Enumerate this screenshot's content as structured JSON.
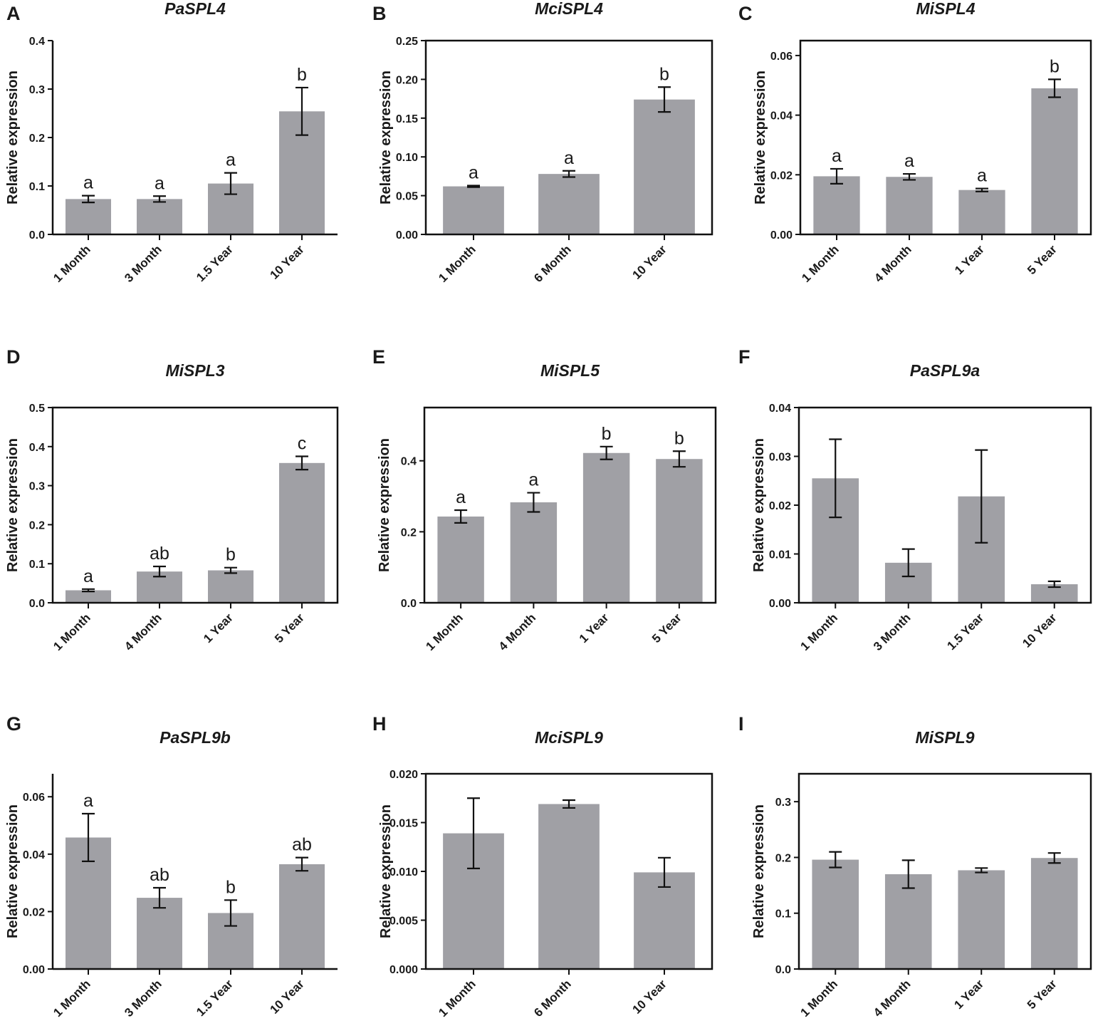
{
  "chart_data": [
    {
      "panel": "A",
      "title": "PaSPL4",
      "type": "bar",
      "ylabel": "Relative expression",
      "ylim": [
        0,
        0.4
      ],
      "yticks": [
        "0.0",
        "0.1",
        "0.2",
        "0.3",
        "0.4"
      ],
      "categories": [
        "1 Month",
        "3 Month",
        "1.5 Year",
        "10 Year"
      ],
      "values": [
        0.073,
        0.073,
        0.105,
        0.254
      ],
      "errors": [
        0.007,
        0.006,
        0.022,
        0.049
      ],
      "labels": [
        "a",
        "a",
        "a",
        "b"
      ],
      "boxed": false
    },
    {
      "panel": "B",
      "title": "MciSPL4",
      "type": "bar",
      "ylabel": "Relative expression",
      "ylim": [
        0,
        0.25
      ],
      "yticks": [
        "0.00",
        "0.05",
        "0.10",
        "0.15",
        "0.20",
        "0.25"
      ],
      "categories": [
        "1 Month",
        "6 Month",
        "10 Year"
      ],
      "values": [
        0.062,
        0.078,
        0.174
      ],
      "errors": [
        0.001,
        0.004,
        0.016
      ],
      "labels": [
        "a",
        "a",
        "b"
      ],
      "boxed": true
    },
    {
      "panel": "C",
      "title": "MiSPL4",
      "type": "bar",
      "ylabel": "Relative expression",
      "ylim": [
        0,
        0.065
      ],
      "yticks": [
        "0.00",
        "0.02",
        "0.04",
        "0.06"
      ],
      "ytick_values": [
        0,
        0.02,
        0.04,
        0.06
      ],
      "categories": [
        "1 Month",
        "4 Month",
        "1 Year",
        "5 Year"
      ],
      "values": [
        0.0195,
        0.0193,
        0.0149,
        0.049
      ],
      "errors": [
        0.0025,
        0.001,
        0.0005,
        0.003
      ],
      "labels": [
        "a",
        "a",
        "a",
        "b"
      ],
      "boxed": true
    },
    {
      "panel": "D",
      "title": "MiSPL3",
      "type": "bar",
      "ylabel": "Relative expression",
      "ylim": [
        0,
        0.5
      ],
      "yticks": [
        "0.0",
        "0.1",
        "0.2",
        "0.3",
        "0.4",
        "0.5"
      ],
      "categories": [
        "1 Month",
        "4 Month",
        "1 Year",
        "5 Year"
      ],
      "values": [
        0.032,
        0.08,
        0.083,
        0.358
      ],
      "errors": [
        0.003,
        0.013,
        0.007,
        0.017
      ],
      "labels": [
        "a",
        "ab",
        "b",
        "c"
      ],
      "boxed": true
    },
    {
      "panel": "E",
      "title": "MiSPL5",
      "type": "bar",
      "ylabel": "Relative expression",
      "ylim": [
        0,
        0.55
      ],
      "yticks": [
        "0.0",
        "0.2",
        "0.4"
      ],
      "ytick_values": [
        0,
        0.2,
        0.4
      ],
      "categories": [
        "1 Month",
        "4 Month",
        "1 Year",
        "5 Year"
      ],
      "values": [
        0.243,
        0.283,
        0.422,
        0.405
      ],
      "errors": [
        0.018,
        0.027,
        0.018,
        0.022
      ],
      "labels": [
        "a",
        "a",
        "b",
        "b"
      ],
      "boxed": true
    },
    {
      "panel": "F",
      "title": "PaSPL9a",
      "type": "bar",
      "ylabel": "Relative expression",
      "ylim": [
        0,
        0.04
      ],
      "yticks": [
        "0.00",
        "0.01",
        "0.02",
        "0.03",
        "0.04"
      ],
      "categories": [
        "1 Month",
        "3 Month",
        "1.5 Year",
        "10 Year"
      ],
      "values": [
        0.0255,
        0.0082,
        0.0218,
        0.0038
      ],
      "errors": [
        0.008,
        0.0028,
        0.0095,
        0.0006
      ],
      "labels": [
        "",
        "",
        "",
        ""
      ],
      "boxed": true
    },
    {
      "panel": "G",
      "title": "PaSPL9b",
      "type": "bar",
      "ylabel": "Relative expression",
      "ylim": [
        0,
        0.068
      ],
      "yticks": [
        "0.00",
        "0.02",
        "0.04",
        "0.06"
      ],
      "ytick_values": [
        0,
        0.02,
        0.04,
        0.06
      ],
      "categories": [
        "1 Month",
        "3 Month",
        "1.5 Year",
        "10 Year"
      ],
      "values": [
        0.0458,
        0.0248,
        0.0195,
        0.0365
      ],
      "errors": [
        0.0083,
        0.0035,
        0.0045,
        0.0023
      ],
      "labels": [
        "a",
        "ab",
        "b",
        "ab"
      ],
      "boxed": false
    },
    {
      "panel": "H",
      "title": "MciSPL9",
      "type": "bar",
      "ylabel": "Relative expression",
      "ylim": [
        0,
        0.02
      ],
      "yticks": [
        "0.000",
        "0.005",
        "0.010",
        "0.015",
        "0.020"
      ],
      "categories": [
        "1 Month",
        "6 Month",
        "10 Year"
      ],
      "values": [
        0.0139,
        0.0169,
        0.0099
      ],
      "errors": [
        0.0036,
        0.0004,
        0.0015
      ],
      "labels": [
        "",
        "",
        ""
      ],
      "boxed": true
    },
    {
      "panel": "I",
      "title": "MiSPL9",
      "type": "bar",
      "ylabel": "Relative expression",
      "ylim": [
        0,
        0.35
      ],
      "yticks": [
        "0.0",
        "0.1",
        "0.2",
        "0.3"
      ],
      "ytick_values": [
        0,
        0.1,
        0.2,
        0.3
      ],
      "categories": [
        "1 Month",
        "4 Month",
        "1 Year",
        "5 Year"
      ],
      "values": [
        0.196,
        0.17,
        0.177,
        0.199
      ],
      "errors": [
        0.014,
        0.025,
        0.004,
        0.009
      ],
      "labels": [
        "",
        "",
        "",
        ""
      ],
      "boxed": true
    }
  ],
  "colors": {
    "bar": "#a0a0a5",
    "axis": "#111111"
  }
}
